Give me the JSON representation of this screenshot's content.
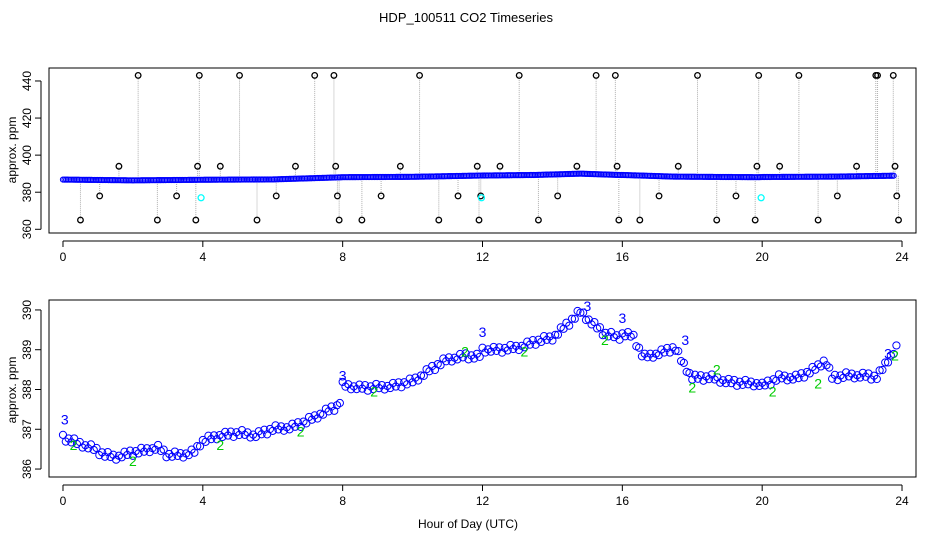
{
  "title": "HDP_100511  CO2 Timeseries",
  "colors": {
    "main": "#0000ff",
    "flag1": "#00ffff",
    "flag2": "#00cc00",
    "outlier": "#000000",
    "connector": "#b0b0b0",
    "background": "#ffffff"
  },
  "chart_data": [
    {
      "type": "scatter",
      "ylabel": "approx. ppm",
      "xlabel": "",
      "xlim": [
        -0.4,
        24.4
      ],
      "ylim": [
        358,
        447
      ],
      "xticks": [
        0,
        4,
        8,
        12,
        16,
        20,
        24
      ],
      "yticks": [
        360,
        380,
        400,
        420,
        440
      ],
      "baseline": {
        "x": [
          0,
          2,
          4,
          6,
          7.9,
          8,
          10,
          12,
          13.5,
          14.8,
          15.9,
          16,
          17.5,
          19,
          19.9,
          20,
          22,
          23.8
        ],
        "y": [
          386.8,
          386.4,
          386.7,
          386.9,
          388.0,
          388.1,
          388.3,
          389.0,
          389.3,
          390.0,
          389.3,
          389.3,
          388.4,
          388.2,
          388.1,
          388.2,
          388.4,
          388.9
        ]
      },
      "outliers": {
        "x": [
          0.5,
          1.05,
          1.6,
          2.15,
          2.7,
          3.25,
          3.8,
          3.85,
          3.9,
          4.5,
          5.05,
          5.55,
          6.1,
          6.65,
          7.2,
          7.75,
          7.8,
          7.85,
          7.9,
          8.55,
          9.1,
          9.65,
          10.2,
          10.75,
          11.3,
          11.85,
          11.9,
          11.95,
          12.5,
          13.05,
          13.6,
          14.15,
          14.7,
          15.25,
          15.8,
          15.85,
          15.9,
          16.5,
          17.05,
          17.6,
          18.15,
          18.7,
          19.25,
          19.8,
          19.85,
          19.9,
          20.5,
          21.05,
          21.6,
          22.15,
          22.7,
          23.25,
          23.3,
          23.75,
          23.8,
          23.85,
          23.9
        ],
        "y": [
          365,
          378,
          394,
          443,
          365,
          378,
          365,
          394,
          443,
          394,
          443,
          365,
          378,
          394,
          443,
          443,
          394,
          378,
          365,
          365,
          378,
          394,
          443,
          365,
          378,
          394,
          365,
          378,
          394,
          443,
          365,
          378,
          394,
          443,
          443,
          394,
          365,
          365,
          378,
          394,
          443,
          365,
          378,
          365,
          394,
          443,
          394,
          443,
          365,
          378,
          394,
          443,
          443,
          443,
          394,
          378,
          365
        ]
      },
      "flag1_points": {
        "x": [
          3.95,
          11.97,
          19.97
        ],
        "y": [
          377,
          377,
          377
        ]
      }
    },
    {
      "type": "scatter",
      "xlabel": "Hour of Day (UTC)",
      "ylabel": "approx. ppm",
      "xlim": [
        -0.4,
        24.4
      ],
      "ylim": [
        385.8,
        390.25
      ],
      "xticks": [
        0,
        4,
        8,
        12,
        16,
        20,
        24
      ],
      "yticks": [
        386,
        387,
        388,
        389,
        390
      ],
      "series_x": [
        0,
        0.4,
        0.8,
        1.2,
        1.5,
        1.9,
        2.3,
        2.7,
        3.0,
        3.4,
        3.8,
        3.95,
        4.0,
        4.5,
        5.0,
        5.5,
        6.0,
        6.5,
        7.0,
        7.4,
        7.9,
        8.0,
        8.5,
        9.0,
        9.5,
        10.0,
        10.5,
        11.0,
        11.5,
        11.9,
        12.0,
        12.5,
        13.0,
        13.5,
        14.0,
        14.5,
        14.8,
        15.1,
        15.5,
        15.9,
        16.0,
        16.3,
        16.6,
        17.0,
        17.5,
        17.7,
        18.0,
        18.5,
        19.0,
        19.5,
        19.9,
        20.0,
        20.5,
        21.0,
        21.5,
        21.8,
        22.0,
        22.5,
        23.0,
        23.3,
        23.6,
        23.85
      ],
      "series_y": [
        386.8,
        386.65,
        386.55,
        386.35,
        386.3,
        386.4,
        386.45,
        386.55,
        386.35,
        386.35,
        386.45,
        386.7,
        386.7,
        386.85,
        386.9,
        386.85,
        387.0,
        387.05,
        387.2,
        387.4,
        387.6,
        388.1,
        388.05,
        388.05,
        388.1,
        388.2,
        388.5,
        388.75,
        388.85,
        388.8,
        389.0,
        389.0,
        389.05,
        389.2,
        389.3,
        389.7,
        389.95,
        389.7,
        389.4,
        389.3,
        389.4,
        389.35,
        388.8,
        388.9,
        389.05,
        388.7,
        388.3,
        388.3,
        388.2,
        388.15,
        388.15,
        388.1,
        388.3,
        388.3,
        388.5,
        388.75,
        388.3,
        388.35,
        388.35,
        388.3,
        388.75,
        389.05
      ],
      "flag3": {
        "x": [
          0.05,
          8.0,
          12.0,
          15.0,
          16.0,
          17.8,
          23.6
        ],
        "y": [
          387.25,
          388.35,
          389.45,
          390.1,
          389.8,
          389.25,
          388.9
        ]
      },
      "flag2": {
        "x": [
          0.3,
          2.0,
          4.5,
          6.8,
          8.9,
          11.5,
          13.2,
          15.5,
          18.0,
          18.7,
          20.3,
          21.6,
          23.8
        ],
        "y": [
          386.6,
          386.2,
          386.6,
          386.95,
          387.95,
          388.95,
          388.95,
          389.25,
          388.05,
          388.5,
          387.95,
          388.15,
          388.85
        ]
      }
    }
  ]
}
